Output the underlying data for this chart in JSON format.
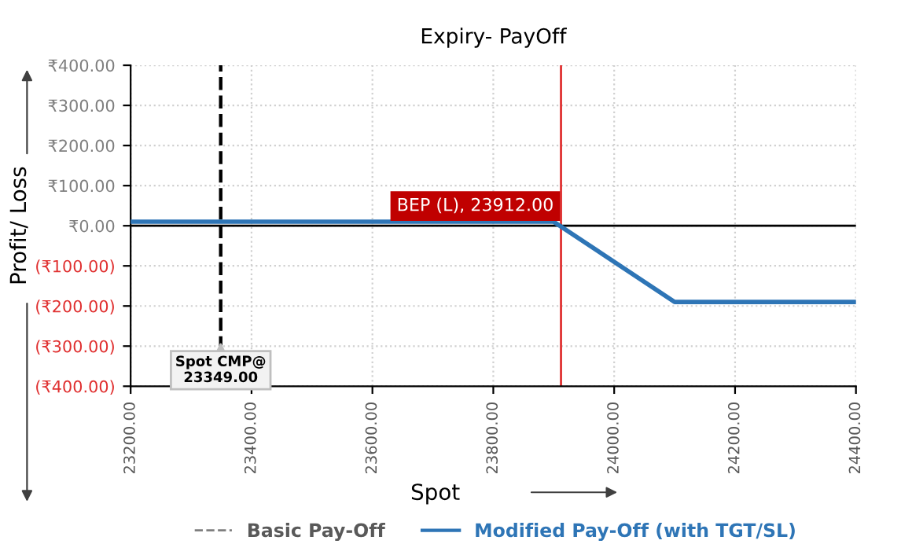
{
  "chart_data": {
    "type": "line",
    "title": "Expiry- PayOff",
    "xlabel": "Spot",
    "ylabel": "Profit/ Loss",
    "series": [
      {
        "name": "Basic Pay-Off",
        "color": "#7f7f7f",
        "line_style": "dashed"
      },
      {
        "name": "Modified Pay-Off (with TGT/SL)",
        "color": "#2e75b6",
        "line_style": "solid",
        "x": [
          23200,
          23900,
          24100,
          24400
        ],
        "values": [
          10,
          10,
          -190,
          -190
        ]
      }
    ],
    "xlim": [
      23200,
      24400
    ],
    "xticks": [
      {
        "value": 23200,
        "label": "23200.00"
      },
      {
        "value": 23400,
        "label": "23400.00"
      },
      {
        "value": 23600,
        "label": "23600.00"
      },
      {
        "value": 23800,
        "label": "23800.00"
      },
      {
        "value": 24000,
        "label": "24000.00"
      },
      {
        "value": 24200,
        "label": "24200.00"
      },
      {
        "value": 24400,
        "label": "24400.00"
      }
    ],
    "ylim": [
      -400,
      400
    ],
    "yticks": [
      {
        "value": -400,
        "label": "(₹400.00)"
      },
      {
        "value": -300,
        "label": "(₹300.00)"
      },
      {
        "value": -200,
        "label": "(₹200.00)"
      },
      {
        "value": -100,
        "label": "(₹100.00)"
      },
      {
        "value": 0,
        "label": "₹0.00"
      },
      {
        "value": 100,
        "label": "₹100.00"
      },
      {
        "value": 200,
        "label": "₹200.00"
      },
      {
        "value": 300,
        "label": "₹300.00"
      },
      {
        "value": 400,
        "label": "₹400.00"
      }
    ],
    "ref_lines": [
      {
        "axis": "x",
        "value": 23349,
        "label": "Spot CMP@\n23349.00",
        "color": "#000000",
        "line_style": "dashed"
      },
      {
        "axis": "x",
        "value": 23912,
        "label": "BEP (L), 23912.00",
        "color": "#e03030",
        "line_style": "solid"
      }
    ],
    "grid": true,
    "legend": "bottom",
    "marker": "none"
  }
}
